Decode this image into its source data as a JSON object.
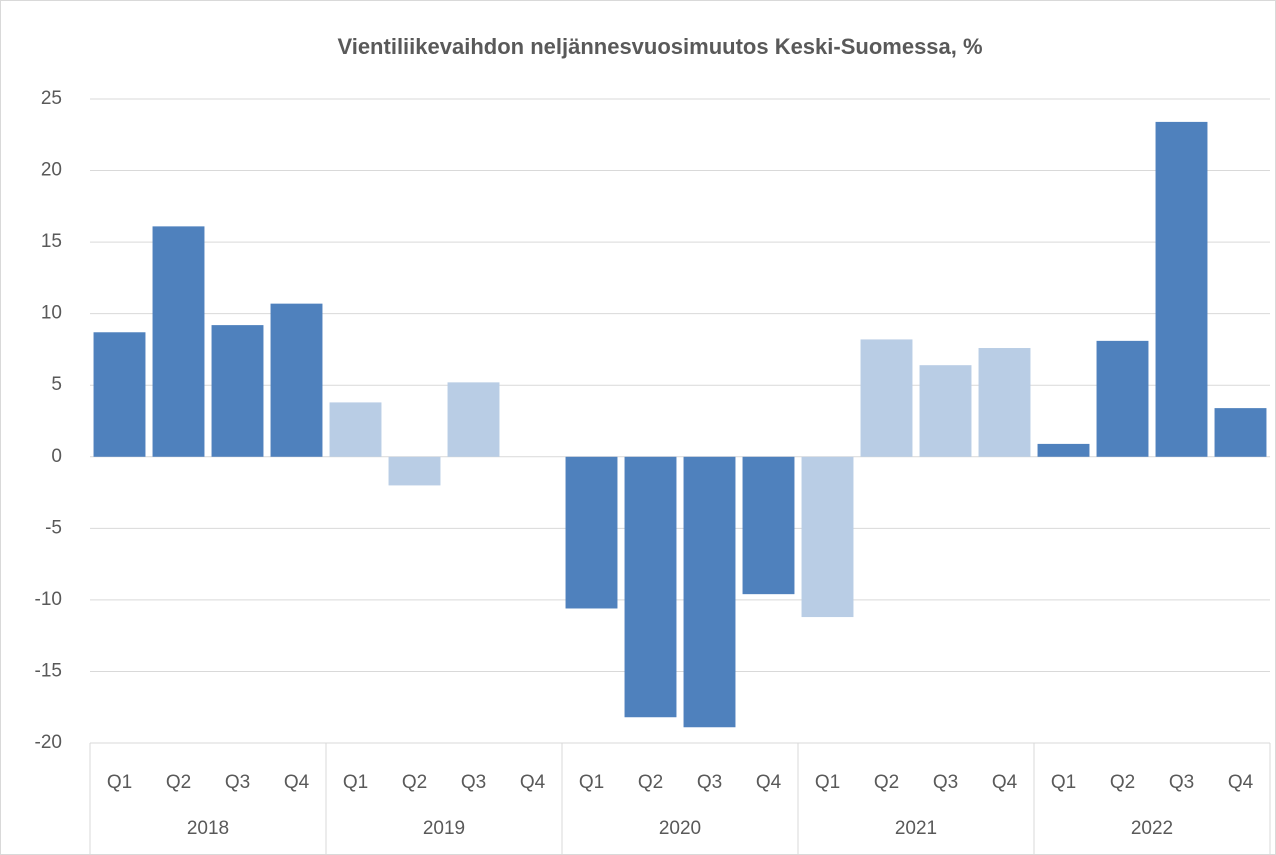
{
  "chart_data": {
    "type": "bar",
    "title": "Vientiliikevaihdon neljännesvuosimuutos Keski-Suomessa, %",
    "categories": [
      "Q1",
      "Q2",
      "Q3",
      "Q4",
      "Q1",
      "Q2",
      "Q3",
      "Q4",
      "Q1",
      "Q2",
      "Q3",
      "Q4",
      "Q1",
      "Q2",
      "Q3",
      "Q4",
      "Q1",
      "Q2",
      "Q3",
      "Q4"
    ],
    "groups": [
      "2018",
      "2019",
      "2020",
      "2021",
      "2022"
    ],
    "values": [
      8.7,
      16.1,
      9.2,
      10.7,
      3.8,
      -2.0,
      5.2,
      0,
      -10.6,
      -18.2,
      -18.9,
      -9.6,
      -11.2,
      8.2,
      6.4,
      7.6,
      0.9,
      8.1,
      23.4,
      3.4
    ],
    "colors": [
      "#4f81bd",
      "#4f81bd",
      "#4f81bd",
      "#4f81bd",
      "#b9cde5",
      "#b9cde5",
      "#b9cde5",
      "#b9cde5",
      "#4f81bd",
      "#4f81bd",
      "#4f81bd",
      "#4f81bd",
      "#b9cde5",
      "#b9cde5",
      "#b9cde5",
      "#b9cde5",
      "#4f81bd",
      "#4f81bd",
      "#4f81bd",
      "#4f81bd"
    ],
    "ylim": [
      -20,
      25
    ],
    "yticks": [
      -20,
      -15,
      -10,
      -5,
      0,
      5,
      10,
      15,
      20,
      25
    ],
    "grid": true
  }
}
